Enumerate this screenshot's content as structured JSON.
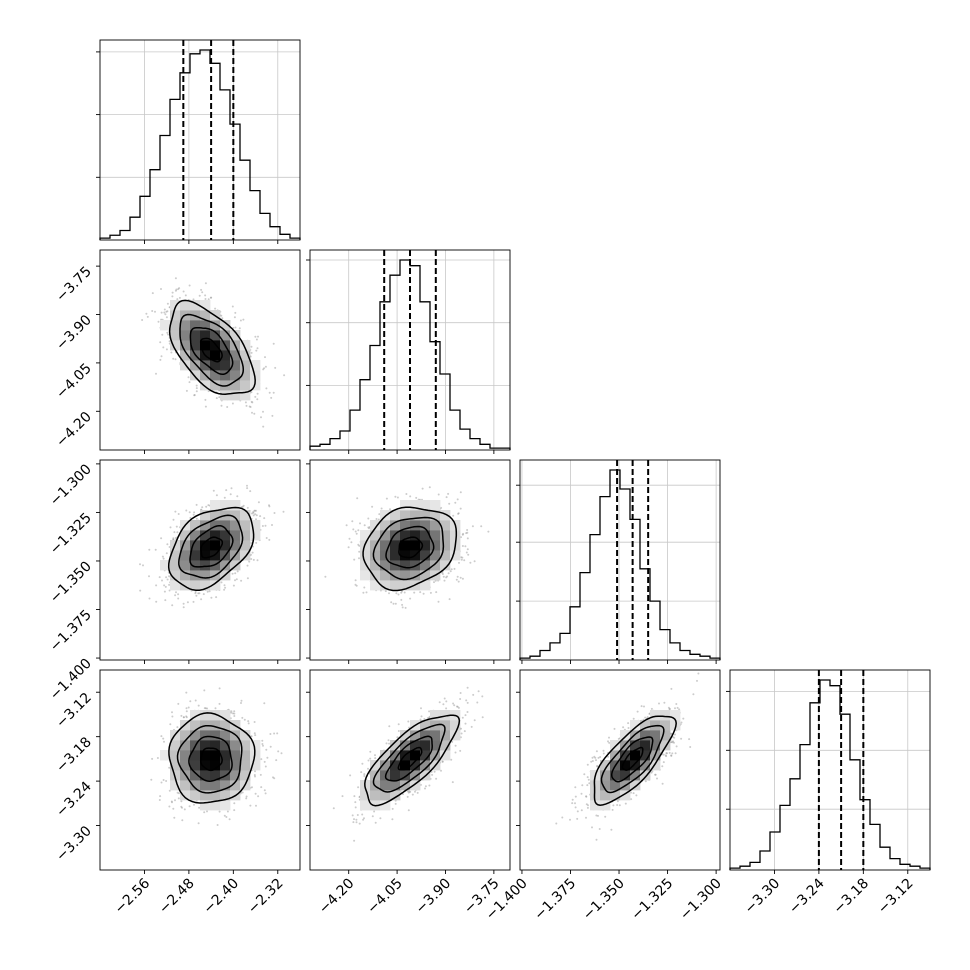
{
  "chart_data": {
    "type": "corner",
    "parameters": [
      {
        "key": "p1",
        "range": [
          -2.64,
          -2.28
        ],
        "ticks": [
          {
            "value": -2.56,
            "label": "−2.56"
          },
          {
            "value": -2.48,
            "label": "−2.48"
          },
          {
            "value": -2.4,
            "label": "−2.40"
          },
          {
            "value": -2.32,
            "label": "−2.32"
          }
        ],
        "quantiles": [
          -2.49,
          -2.44,
          -2.4
        ],
        "hist": {
          "edges_start": -2.64,
          "edge_step": 0.018,
          "counts": [
            0.01,
            0.025,
            0.05,
            0.12,
            0.23,
            0.37,
            0.55,
            0.74,
            0.88,
            0.98,
            1.0,
            0.93,
            0.79,
            0.61,
            0.42,
            0.26,
            0.14,
            0.07,
            0.03,
            0.01
          ]
        },
        "hist_yticks": [
          0.33,
          0.66,
          0.99
        ]
      },
      {
        "key": "p2",
        "range": [
          -4.32,
          -3.7
        ],
        "ticks": [
          {
            "value": -4.2,
            "label": "−4.20"
          },
          {
            "value": -4.05,
            "label": "−4.05"
          },
          {
            "value": -3.9,
            "label": "−3.90"
          },
          {
            "value": -3.75,
            "label": "−3.75"
          }
        ],
        "quantiles": [
          -4.09,
          -4.01,
          -3.93
        ],
        "hist": {
          "edges_start": -4.32,
          "edge_step": 0.031,
          "counts": [
            0.02,
            0.03,
            0.06,
            0.1,
            0.21,
            0.37,
            0.55,
            0.78,
            0.92,
            1.0,
            0.97,
            0.78,
            0.57,
            0.4,
            0.21,
            0.11,
            0.06,
            0.03,
            0.01,
            0.01
          ]
        },
        "hist_yticks": [
          0.34,
          0.67,
          1.0
        ]
      },
      {
        "key": "p3",
        "range": [
          -1.401,
          -1.298
        ],
        "ticks": [
          {
            "value": -1.4,
            "label": "−1.400"
          },
          {
            "value": -1.375,
            "label": "−1.375"
          },
          {
            "value": -1.35,
            "label": "−1.350"
          },
          {
            "value": -1.325,
            "label": "−1.325"
          },
          {
            "value": -1.3,
            "label": "−1.300"
          }
        ],
        "ticks_y": [
          {
            "value": -1.4,
            "label": "−1.400"
          },
          {
            "value": -1.375,
            "label": "−1.375"
          },
          {
            "value": -1.35,
            "label": "−1.350"
          },
          {
            "value": -1.325,
            "label": "−1.325"
          },
          {
            "value": -1.3,
            "label": "−1.300"
          }
        ],
        "quantiles": [
          -1.351,
          -1.343,
          -1.335
        ],
        "hist": {
          "edges_start": -1.401,
          "edge_step": 0.00515,
          "counts": [
            0.01,
            0.02,
            0.05,
            0.09,
            0.14,
            0.28,
            0.46,
            0.66,
            0.86,
            1.0,
            0.9,
            0.74,
            0.48,
            0.31,
            0.16,
            0.09,
            0.05,
            0.03,
            0.02,
            0.01
          ]
        },
        "hist_yticks": [
          0.31,
          0.62,
          0.92
        ]
      },
      {
        "key": "p4",
        "range": [
          -3.36,
          -3.09
        ],
        "ticks": [
          {
            "value": -3.3,
            "label": "−3.30"
          },
          {
            "value": -3.24,
            "label": "−3.24"
          },
          {
            "value": -3.18,
            "label": "−3.18"
          },
          {
            "value": -3.12,
            "label": "−3.12"
          }
        ],
        "quantiles": [
          -3.24,
          -3.21,
          -3.18
        ],
        "hist": {
          "edges_start": -3.36,
          "edge_step": 0.0135,
          "counts": [
            0.01,
            0.02,
            0.04,
            0.1,
            0.2,
            0.34,
            0.48,
            0.66,
            0.88,
            1.0,
            0.97,
            0.82,
            0.58,
            0.37,
            0.24,
            0.12,
            0.06,
            0.03,
            0.02,
            0.01
          ]
        },
        "hist_yticks": [
          0.32,
          0.63,
          0.94
        ]
      }
    ],
    "pairs": [
      {
        "x": "p1",
        "y": "p2",
        "mean": [
          -2.44,
          -4.01
        ],
        "sd": [
          0.038,
          0.072
        ],
        "rho": -0.55
      },
      {
        "x": "p1",
        "y": "p3",
        "mean": [
          -2.44,
          -1.343
        ],
        "sd": [
          0.038,
          0.0105
        ],
        "rho": 0.4
      },
      {
        "x": "p2",
        "y": "p3",
        "mean": [
          -4.01,
          -1.343
        ],
        "sd": [
          0.072,
          0.0105
        ],
        "rho": 0.2
      },
      {
        "x": "p1",
        "y": "p4",
        "mean": [
          -2.44,
          -3.21
        ],
        "sd": [
          0.038,
          0.03
        ],
        "rho": 0.0
      },
      {
        "x": "p2",
        "y": "p4",
        "mean": [
          -4.01,
          -3.21
        ],
        "sd": [
          0.072,
          0.03
        ],
        "rho": 0.75
      },
      {
        "x": "p3",
        "y": "p4",
        "mean": [
          -1.343,
          -3.21
        ],
        "sd": [
          0.0105,
          0.03
        ],
        "rho": 0.75
      }
    ],
    "contour_levels_sigma": [
      0.5,
      1.0,
      1.5,
      2.0
    ],
    "grid": true,
    "quantile_lines": "dashed"
  }
}
